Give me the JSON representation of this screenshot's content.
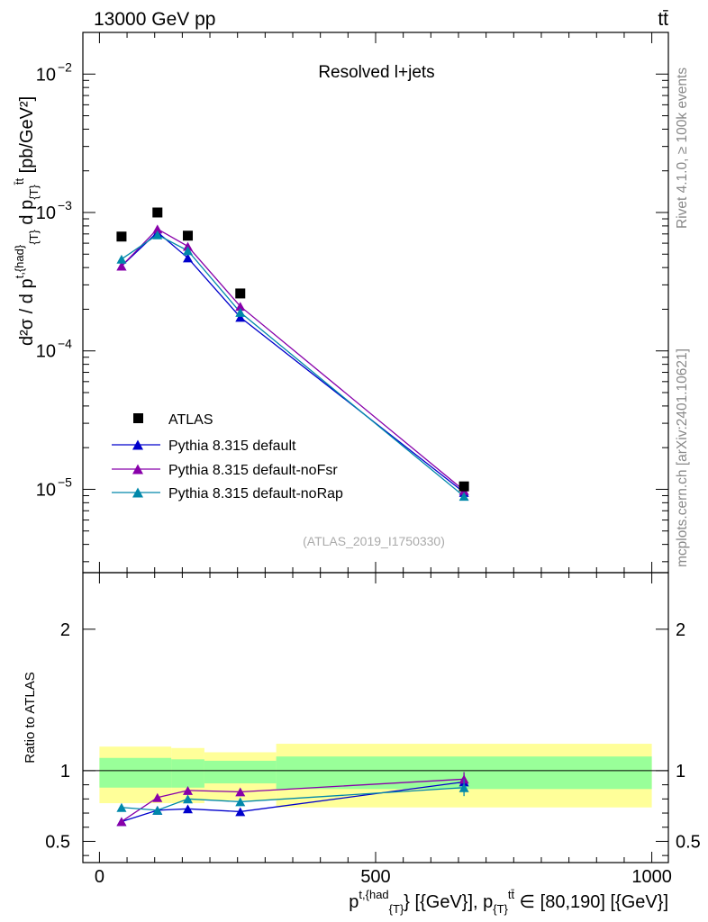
{
  "header": {
    "energy_label": "13000 GeV pp",
    "process_label": "tt̄"
  },
  "side_text": {
    "rivet": "Rivet 4.1.0, ≥ 100k events",
    "mcplots": "mcplots.cern.ch [arXiv:2401.10621]"
  },
  "chart_data": [
    {
      "type": "line",
      "panel": "main",
      "title": "Resolved l+jets",
      "analysis_tag": "(ATLAS_2019_I1750330)",
      "yscale": "log",
      "ylim": [
        2.5e-06,
        0.02
      ],
      "ylabel_parts": [
        "d²σ / d p",
        "t,{had}",
        "{T}",
        " d p",
        "{T}",
        "t̄t",
        " [pb/GeV²]"
      ],
      "ytick_labels": [
        {
          "value": 0.01,
          "base": "10",
          "exp": "−2"
        },
        {
          "value": 0.001,
          "base": "10",
          "exp": "−3"
        },
        {
          "value": 0.0001,
          "base": "10",
          "exp": "−4"
        },
        {
          "value": 1e-05,
          "base": "10",
          "exp": "−5"
        }
      ],
      "x": [
        40,
        105,
        160,
        255,
        660
      ],
      "xlim": [
        -30,
        1030
      ],
      "legend_position": "lower-left",
      "data": {
        "name": "ATLAS",
        "color": "#000000",
        "values": [
          0.00067,
          0.001,
          0.00068,
          0.00026,
          1.05e-05
        ]
      },
      "series": [
        {
          "name": "Pythia 8.315 default",
          "color": "#0000cc",
          "values": [
            0.00041,
            0.00072,
            0.00047,
            0.000175,
            9.5e-06
          ]
        },
        {
          "name": "Pythia 8.315 default-noFsr",
          "color": "#8800aa",
          "values": [
            0.00041,
            0.00076,
            0.00057,
            0.00021,
            9.8e-06
          ]
        },
        {
          "name": "Pythia 8.315 default-noRap",
          "color": "#0088aa",
          "values": [
            0.00046,
            0.00069,
            0.00053,
            0.00019,
            8.9e-06
          ]
        }
      ]
    },
    {
      "type": "line",
      "panel": "ratio",
      "ylabel": "Ratio to ATLAS",
      "ylim": [
        0.35,
        2.4
      ],
      "yticks": [
        0.5,
        1,
        2
      ],
      "ytick_labels": [
        "0.5",
        "1",
        "2"
      ],
      "xticks": [
        0,
        500,
        1000
      ],
      "xtick_labels": [
        "0",
        "500",
        "1000"
      ],
      "xlim": [
        -30,
        1030
      ],
      "xlabel_parts": [
        "p",
        "t,{had",
        "{T}",
        "} [{GeV}], p",
        "{T}",
        "tt̄",
        " ∈ [80,190] [{GeV}]"
      ],
      "bin_edges": [
        0,
        130,
        190,
        320,
        1000
      ],
      "uncertainty_bands": {
        "yellow": {
          "color": "#ffff99",
          "low": [
            0.77,
            0.77,
            0.79,
            0.74
          ],
          "high": [
            1.17,
            1.16,
            1.13,
            1.19
          ]
        },
        "green": {
          "color": "#99ff99",
          "low": [
            0.88,
            0.88,
            0.91,
            0.87
          ],
          "high": [
            1.09,
            1.08,
            1.07,
            1.1
          ]
        }
      },
      "x": [
        40,
        105,
        160,
        255,
        660
      ],
      "series": [
        {
          "name": "Pythia 8.315 default",
          "color": "#0000cc",
          "values": [
            0.64,
            0.72,
            0.73,
            0.71,
            0.92
          ],
          "errors": [
            0.02,
            0.02,
            0.02,
            0.02,
            0.05
          ]
        },
        {
          "name": "Pythia 8.315 default-noFsr",
          "color": "#8800aa",
          "values": [
            0.64,
            0.81,
            0.86,
            0.85,
            0.94
          ],
          "errors": [
            0.02,
            0.02,
            0.02,
            0.02,
            0.05
          ]
        },
        {
          "name": "Pythia 8.315 default-noRap",
          "color": "#0088aa",
          "values": [
            0.74,
            0.72,
            0.8,
            0.78,
            0.88
          ],
          "errors": [
            0.02,
            0.02,
            0.02,
            0.02,
            0.06
          ]
        }
      ]
    }
  ]
}
